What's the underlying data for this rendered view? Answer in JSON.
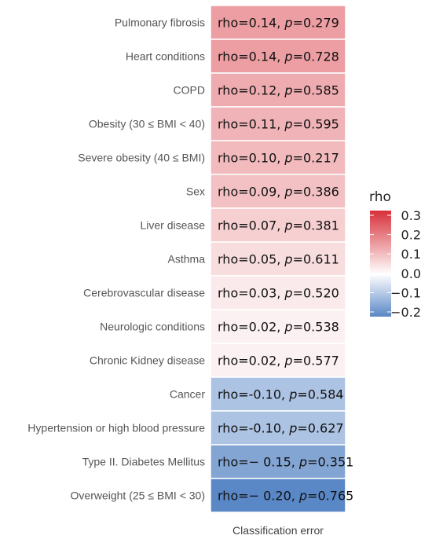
{
  "chart_data": {
    "type": "heatmap",
    "xlabel": "Classification error",
    "column": "Classification error",
    "rows": [
      {
        "label": "Pulmonary fibrosis",
        "rho": 0.14,
        "rho_text": "0.14,",
        "p_text": "0.279"
      },
      {
        "label": "Heart conditions",
        "rho": 0.14,
        "rho_text": "0.14,",
        "p_text": "0.728"
      },
      {
        "label": "COPD",
        "rho": 0.12,
        "rho_text": "0.12,",
        "p_text": "0.585"
      },
      {
        "label": "Obesity (30 ≤ BMI < 40)",
        "rho": 0.11,
        "rho_text": "0.11,",
        "p_text": "0.595"
      },
      {
        "label": "Severe obesity (40 ≤ BMI)",
        "rho": 0.1,
        "rho_text": "0.10,",
        "p_text": "0.217"
      },
      {
        "label": "Sex",
        "rho": 0.09,
        "rho_text": "0.09,",
        "p_text": "0.386"
      },
      {
        "label": "Liver disease",
        "rho": 0.07,
        "rho_text": "0.07,",
        "p_text": "0.381"
      },
      {
        "label": "Asthma",
        "rho": 0.05,
        "rho_text": "0.05,",
        "p_text": "0.611"
      },
      {
        "label": "Cerebrovascular disease",
        "rho": 0.03,
        "rho_text": "0.03,",
        "p_text": "0.520"
      },
      {
        "label": "Neurologic conditions",
        "rho": 0.02,
        "rho_text": "0.02,",
        "p_text": "0.538"
      },
      {
        "label": "Chronic Kidney disease",
        "rho": 0.02,
        "rho_text": "0.02,",
        "p_text": "0.577"
      },
      {
        "label": "Cancer",
        "rho": -0.1,
        "rho_text": "-0.10,",
        "p_text": "0.584"
      },
      {
        "label": "Hypertension or high blood pressure",
        "rho": -0.1,
        "rho_text": "-0.10,",
        "p_text": "0.627"
      },
      {
        "label": "Type II. Diabetes Mellitus",
        "rho": -0.15,
        "rho_text": "− 0.15,",
        "p_text": "0.351"
      },
      {
        "label": "Overweight (25 ≤ BMI < 30)",
        "rho": -0.2,
        "rho_text": "− 0.20,",
        "p_text": "0.765"
      }
    ],
    "cell_prefix": "rho=",
    "p_prefix": "p",
    "legend": {
      "title": "rho",
      "ticks": [
        {
          "value": 0.3,
          "label": "0.3"
        },
        {
          "value": 0.2,
          "label": "0.2"
        },
        {
          "value": 0.1,
          "label": "0.1"
        },
        {
          "value": 0.0,
          "label": "0.0"
        },
        {
          "value": -0.1,
          "label": "−0.1"
        },
        {
          "value": -0.2,
          "label": "−0.2"
        }
      ],
      "range": [
        -0.2,
        0.3
      ],
      "placement": "right"
    },
    "colors": {
      "low": "#5a87c6",
      "mid": "#ffffff",
      "high": "#d7303a"
    }
  }
}
